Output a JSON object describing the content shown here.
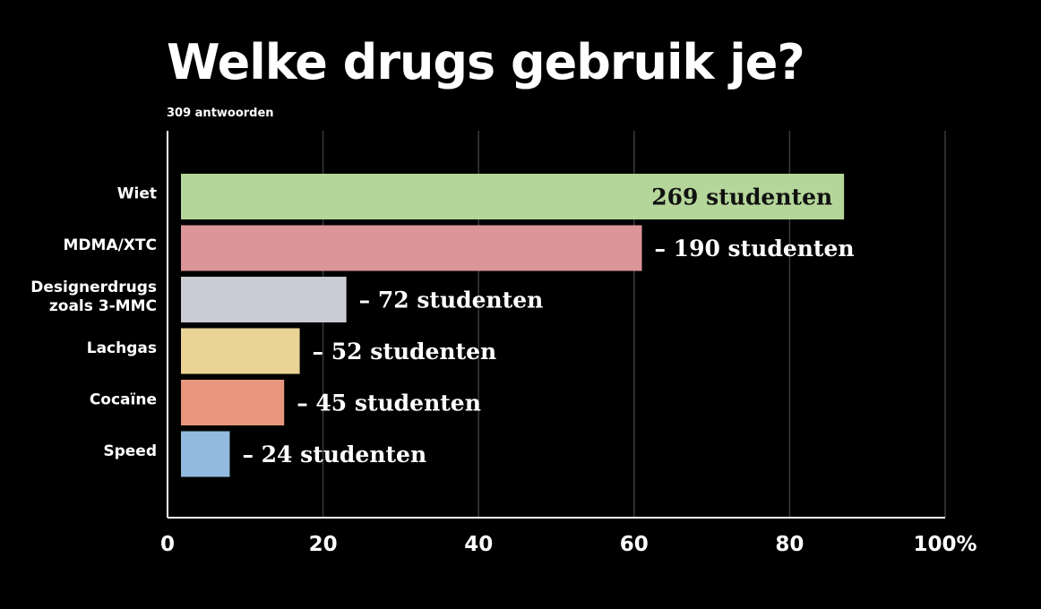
{
  "title": "Welke drugs gebruik je?",
  "subtitle": "309 antwoorden",
  "chart_data": {
    "type": "bar",
    "orientation": "horizontal",
    "title": "Welke drugs gebruik je?",
    "subtitle": "309 antwoorden",
    "xlabel": "",
    "ylabel": "",
    "xlim": [
      0,
      100
    ],
    "x_ticks": [
      0,
      20,
      40,
      60,
      80,
      100
    ],
    "x_tick_labels": [
      "0",
      "20",
      "40",
      "60",
      "80",
      "100%"
    ],
    "grid": "vertical",
    "legend": "none",
    "categories": [
      [
        "Wiet"
      ],
      [
        "MDMA/XTC"
      ],
      [
        "Designerdrugs",
        "zoals 3-MMC"
      ],
      [
        "Lachgas"
      ],
      [
        "Cocaïne"
      ],
      [
        "Speed"
      ]
    ],
    "values": [
      87,
      61,
      23,
      17,
      15,
      8
    ],
    "labels": [
      "269 studenten",
      "– 190 studenten",
      "– 72 studenten",
      "– 52 studenten",
      "– 45 studenten",
      "– 24 studenten"
    ],
    "label_inside": [
      true,
      false,
      false,
      false,
      false,
      false
    ],
    "colors": [
      "#b5d69a",
      "#dc9599",
      "#c9ccd5",
      "#e9d395",
      "#e8977d",
      "#93b9df"
    ]
  }
}
